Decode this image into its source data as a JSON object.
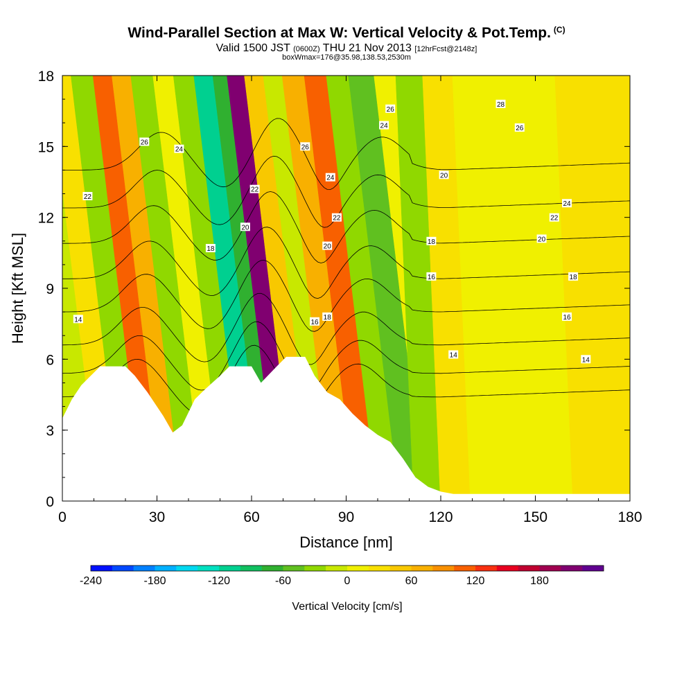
{
  "header": {
    "title": "Wind-Parallel Section at Max W: Vertical Velocity & Pot.Temp.",
    "copyright": "(C)",
    "subtitle_main": "Valid 1500 JST",
    "subtitle_zulu": "(0600Z)",
    "subtitle_date": "THU 21 Nov 2013",
    "subtitle_fcst": "[12hrFcst@2148z]",
    "subtitle_box": "boxWmax=176@35.98,138.53,2530m"
  },
  "chart_data": {
    "type": "heatmap",
    "xlabel": "Distance [nm]",
    "ylabel": "Height [Kft MSL]",
    "xlim": [
      0,
      180
    ],
    "ylim": [
      0,
      18
    ],
    "xticks": [
      0,
      30,
      60,
      90,
      120,
      150,
      180
    ],
    "xtick_labels": [
      "0",
      "30",
      "60",
      "90",
      "120",
      "150",
      "180"
    ],
    "yticks": [
      0,
      3,
      6,
      9,
      12,
      15,
      18
    ],
    "ytick_labels": [
      "0",
      "3",
      "6",
      "9",
      "12",
      "15",
      "18"
    ],
    "colorbar": {
      "label": "Vertical Velocity [cm/s]",
      "tick_values": [
        -240,
        -180,
        -120,
        -60,
        0,
        60,
        120,
        180
      ],
      "tick_labels": [
        "-240",
        "-180",
        "-120",
        "-60",
        "0",
        "60",
        "120",
        "180"
      ],
      "levels": [
        -240,
        -220,
        -200,
        -180,
        -160,
        -140,
        -120,
        -100,
        -80,
        -60,
        -40,
        -20,
        0,
        20,
        40,
        60,
        80,
        100,
        120,
        140,
        160,
        180,
        200,
        220
      ],
      "colors": [
        "#0010ff",
        "#0048ff",
        "#0080ff",
        "#00b0ff",
        "#00d8f0",
        "#00e0c0",
        "#00d090",
        "#10c060",
        "#30b030",
        "#60c020",
        "#90d800",
        "#c8e800",
        "#f0f000",
        "#f8e000",
        "#f8c800",
        "#f8b000",
        "#f89000",
        "#f86000",
        "#f83010",
        "#e80020",
        "#c00030",
        "#a00050",
        "#800070",
        "#600090"
      ]
    },
    "velocity_bands": [
      {
        "x": 3,
        "w": -15
      },
      {
        "x": 10,
        "w": 20
      },
      {
        "x": 17,
        "w": -40
      },
      {
        "x": 24,
        "w": 110
      },
      {
        "x": 29,
        "w": 60
      },
      {
        "x": 36,
        "w": -30
      },
      {
        "x": 43,
        "w": 15
      },
      {
        "x": 49,
        "w": -30
      },
      {
        "x": 56,
        "w": -120
      },
      {
        "x": 61,
        "w": -70
      },
      {
        "x": 65,
        "w": 215
      },
      {
        "x": 72,
        "w": 40
      },
      {
        "x": 77,
        "w": -20
      },
      {
        "x": 84,
        "w": 60
      },
      {
        "x": 91,
        "w": 100
      },
      {
        "x": 98,
        "w": -40
      },
      {
        "x": 105,
        "w": -55
      },
      {
        "x": 114,
        "w": -35
      },
      {
        "x": 122,
        "w": 25
      },
      {
        "x": 133,
        "w": 8
      },
      {
        "x": 150,
        "w": 5
      },
      {
        "x": 170,
        "w": 20
      }
    ],
    "terrain": [
      [
        0,
        3.5
      ],
      [
        3,
        4.3
      ],
      [
        6,
        4.9
      ],
      [
        9,
        5.3
      ],
      [
        12,
        5.7
      ],
      [
        20,
        5.7
      ],
      [
        23,
        5.3
      ],
      [
        27,
        4.6
      ],
      [
        32,
        3.6
      ],
      [
        35,
        2.9
      ],
      [
        38,
        3.2
      ],
      [
        42,
        4.3
      ],
      [
        45,
        4.7
      ],
      [
        50,
        5.3
      ],
      [
        53,
        5.7
      ],
      [
        60,
        5.7
      ],
      [
        63,
        5.0
      ],
      [
        68,
        5.7
      ],
      [
        71,
        6.1
      ],
      [
        77,
        6.1
      ],
      [
        80,
        5.3
      ],
      [
        84,
        4.6
      ],
      [
        88,
        4.3
      ],
      [
        92,
        3.7
      ],
      [
        96,
        3.2
      ],
      [
        100,
        2.8
      ],
      [
        104,
        2.5
      ],
      [
        108,
        1.8
      ],
      [
        112,
        1.0
      ],
      [
        116,
        0.6
      ],
      [
        120,
        0.4
      ],
      [
        124,
        0.3
      ],
      [
        180,
        0.3
      ]
    ],
    "isentropes": [
      {
        "label": "14",
        "base": 4.4
      },
      {
        "label": "16",
        "base": 5.4
      },
      {
        "label": "18",
        "base": 6.6
      },
      {
        "label": "20",
        "base": 8.0
      },
      {
        "label": "22",
        "base": 9.4
      },
      {
        "label": "24",
        "base": 10.9
      },
      {
        "label": "26",
        "base": 12.4
      },
      {
        "label": "28",
        "base": 14.0
      }
    ],
    "contour_labels": [
      {
        "text": "14",
        "x": 5,
        "y": 7.7
      },
      {
        "text": "22",
        "x": 8,
        "y": 12.9
      },
      {
        "text": "26",
        "x": 26,
        "y": 15.2
      },
      {
        "text": "24",
        "x": 37,
        "y": 14.9
      },
      {
        "text": "18",
        "x": 47,
        "y": 10.7
      },
      {
        "text": "20",
        "x": 58,
        "y": 11.6
      },
      {
        "text": "22",
        "x": 61,
        "y": 13.2
      },
      {
        "text": "26",
        "x": 77,
        "y": 15.0
      },
      {
        "text": "24",
        "x": 85,
        "y": 13.7
      },
      {
        "text": "22",
        "x": 87,
        "y": 12.0
      },
      {
        "text": "20",
        "x": 84,
        "y": 10.8
      },
      {
        "text": "18",
        "x": 84,
        "y": 7.8
      },
      {
        "text": "16",
        "x": 80,
        "y": 7.6
      },
      {
        "text": "26",
        "x": 104,
        "y": 16.6
      },
      {
        "text": "24",
        "x": 102,
        "y": 15.9
      },
      {
        "text": "20",
        "x": 121,
        "y": 13.8
      },
      {
        "text": "18",
        "x": 117,
        "y": 11.0
      },
      {
        "text": "16",
        "x": 117,
        "y": 9.5
      },
      {
        "text": "14",
        "x": 124,
        "y": 6.2
      },
      {
        "text": "28",
        "x": 139,
        "y": 16.8
      },
      {
        "text": "26",
        "x": 145,
        "y": 15.8
      },
      {
        "text": "24",
        "x": 160,
        "y": 12.6
      },
      {
        "text": "22",
        "x": 156,
        "y": 12.0
      },
      {
        "text": "20",
        "x": 152,
        "y": 11.1
      },
      {
        "text": "18",
        "x": 162,
        "y": 9.5
      },
      {
        "text": "16",
        "x": 160,
        "y": 7.8
      },
      {
        "text": "14",
        "x": 166,
        "y": 6.0
      }
    ]
  }
}
